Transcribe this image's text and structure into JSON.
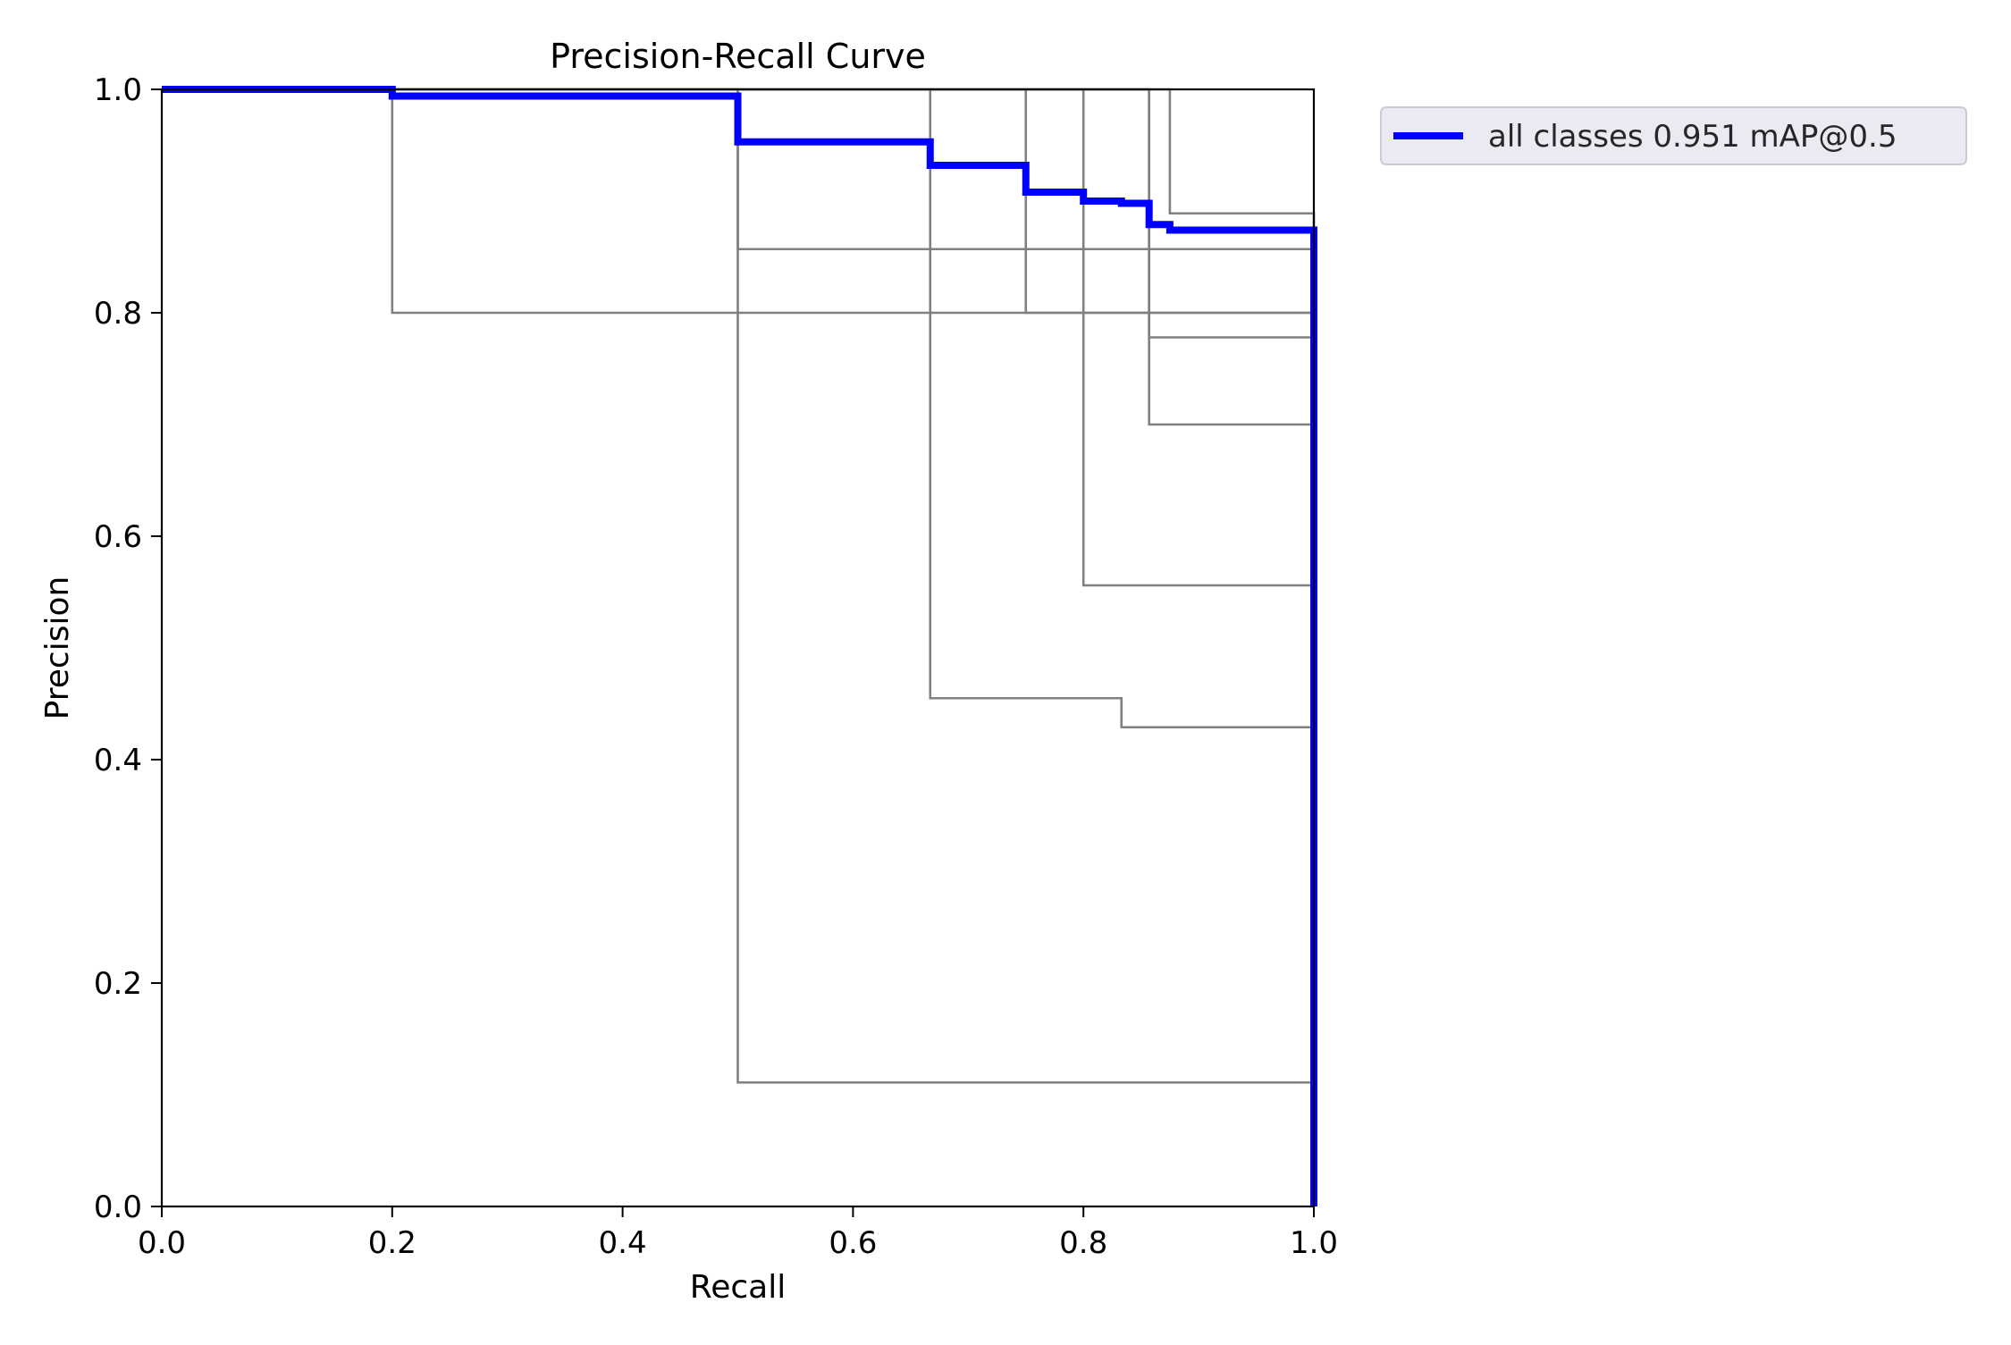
{
  "chart_data": {
    "type": "line",
    "title": "Precision-Recall Curve",
    "xlabel": "Recall",
    "ylabel": "Precision",
    "xlim": [
      0,
      1
    ],
    "ylim": [
      0,
      1
    ],
    "xticks": [
      "0.0",
      "0.2",
      "0.4",
      "0.6",
      "0.8",
      "1.0"
    ],
    "yticks": [
      "0.0",
      "0.2",
      "0.4",
      "0.6",
      "0.8",
      "1.0"
    ],
    "grid": false,
    "legend": {
      "placement": "outside top-right",
      "entries": [
        "all classes 0.951 mAP@0.5"
      ]
    },
    "colors": {
      "all_classes": "#0000ff",
      "per_class": "#808080"
    },
    "series": [
      {
        "x": [
          0,
          0.2,
          0.2,
          1.0,
          1.0
        ],
        "y": [
          1.0,
          1.0,
          0.8,
          0.8,
          0.0
        ]
      },
      {
        "x": [
          0,
          0.5,
          0.5,
          1.0,
          1.0
        ],
        "y": [
          1.0,
          1.0,
          0.111,
          0.111,
          0.0
        ]
      },
      {
        "x": [
          0,
          0.5,
          0.5,
          1.0,
          1.0
        ],
        "y": [
          1.0,
          1.0,
          0.857,
          0.857,
          0.0
        ]
      },
      {
        "x": [
          0,
          0.667,
          0.667,
          0.833,
          0.833,
          1.0,
          1.0
        ],
        "y": [
          1.0,
          1.0,
          0.455,
          0.455,
          0.429,
          0.429,
          0.0
        ]
      },
      {
        "x": [
          0,
          0.75,
          0.75,
          1.0,
          1.0
        ],
        "y": [
          1.0,
          1.0,
          0.8,
          0.8,
          0.0
        ]
      },
      {
        "x": [
          0,
          0.8,
          0.8,
          1.0,
          1.0
        ],
        "y": [
          1.0,
          1.0,
          0.556,
          0.556,
          0.0
        ]
      },
      {
        "x": [
          0,
          0.857,
          0.857,
          1.0,
          1.0
        ],
        "y": [
          1.0,
          1.0,
          0.778,
          0.778,
          0.0
        ]
      },
      {
        "x": [
          0,
          0.857,
          0.857,
          1.0,
          1.0
        ],
        "y": [
          1.0,
          1.0,
          0.7,
          0.7,
          0.0
        ]
      },
      {
        "x": [
          0,
          0.875,
          0.875,
          1.0,
          1.0
        ],
        "y": [
          1.0,
          1.0,
          0.889,
          0.889,
          0.0
        ]
      },
      {
        "name": "all classes 0.951 mAP@0.5",
        "x": [
          0,
          0.2,
          0.2,
          0.5,
          0.5,
          0.667,
          0.667,
          0.75,
          0.75,
          0.8,
          0.8,
          0.833,
          0.833,
          0.857,
          0.857,
          0.875,
          0.875,
          1.0,
          1.0
        ],
        "y": [
          1.0,
          1.0,
          0.994,
          0.994,
          0.953,
          0.953,
          0.932,
          0.932,
          0.908,
          0.908,
          0.9,
          0.9,
          0.898,
          0.898,
          0.879,
          0.879,
          0.874,
          0.874,
          0.0
        ]
      }
    ]
  }
}
